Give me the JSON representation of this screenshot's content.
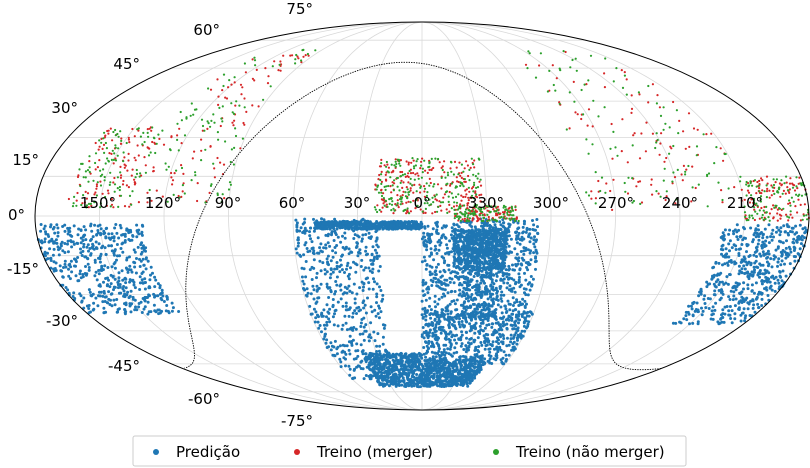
{
  "chart_data": {
    "type": "scatter",
    "projection": "mollweide",
    "title": "",
    "xlabel": "",
    "ylabel": "",
    "grid": true,
    "legend_position": "bottom",
    "lon_tick_labels": [
      "150°",
      "120°",
      "90°",
      "60°",
      "30°",
      "0°",
      "330°",
      "300°",
      "270°",
      "240°",
      "210°"
    ],
    "lat_tick_labels": [
      "-75°",
      "-60°",
      "-45°",
      "-30°",
      "-15°",
      "0°",
      "15°",
      "30°",
      "45°",
      "60°",
      "75°"
    ],
    "legend": [
      {
        "label": "Predição",
        "color": "#1f77b4"
      },
      {
        "label": "Treino (merger)",
        "color": "#d62728"
      },
      {
        "label": "Treino (não merger)",
        "color": "#2ca02c"
      }
    ],
    "series": [
      {
        "name": "Predição",
        "color": "#1f77b4",
        "regions": [
          {
            "ra": [
              305,
              340
            ],
            "dec": [
              -40,
              -1
            ]
          },
          {
            "ra": [
              320,
              360
            ],
            "dec": [
              -40,
              -2
            ]
          },
          {
            "ra": [
              20,
              60
            ],
            "dec": [
              -68,
              -1
            ]
          },
          {
            "ra": [
              0,
              50
            ],
            "dec": [
              -5,
              -2
            ]
          },
          {
            "ra": [
              300,
              360
            ],
            "dec": [
              -60,
              -37
            ]
          },
          {
            "ra": [
              0,
              40
            ],
            "dec": [
              -72,
              -55
            ]
          },
          {
            "ra": [
              315,
              360
            ],
            "dec": [
              -72,
              -58
            ]
          },
          {
            "ra": [
              320,
              345
            ],
            "dec": [
              -20,
              -5
            ]
          },
          {
            "ra": [
              130,
              180
            ],
            "dec": [
              -38,
              -3
            ]
          },
          {
            "ra": [
              180,
              220
            ],
            "dec": [
              -42,
              -3
            ]
          }
        ]
      },
      {
        "name": "Treino (merger)",
        "color": "#d62728",
        "regions": [
          {
            "ra": [
              0,
              22
            ],
            "dec": [
              1,
              22
            ]
          },
          {
            "ra": [
              332,
              360
            ],
            "dec": [
              1,
              22
            ]
          },
          {
            "ra": [
              90,
              135
            ],
            "dec": [
              5,
              70
            ]
          },
          {
            "ra": [
              210,
              285
            ],
            "dec": [
              2,
              70
            ]
          },
          {
            "ra": [
              135,
              165
            ],
            "dec": [
              3,
              35
            ]
          },
          {
            "ra": [
              180,
              210
            ],
            "dec": [
              -2,
              15
            ]
          },
          {
            "ra": [
              315,
              345
            ],
            "dec": [
              -2,
              4
            ]
          }
        ]
      },
      {
        "name": "Treino (não merger)",
        "color": "#2ca02c",
        "regions": [
          {
            "ra": [
              0,
              22
            ],
            "dec": [
              1,
              22
            ]
          },
          {
            "ra": [
              332,
              360
            ],
            "dec": [
              1,
              22
            ]
          },
          {
            "ra": [
              90,
              135
            ],
            "dec": [
              5,
              70
            ]
          },
          {
            "ra": [
              210,
              285
            ],
            "dec": [
              2,
              70
            ]
          },
          {
            "ra": [
              135,
              165
            ],
            "dec": [
              3,
              35
            ]
          },
          {
            "ra": [
              180,
              210
            ],
            "dec": [
              -2,
              15
            ]
          },
          {
            "ra": [
              315,
              345
            ],
            "dec": [
              -2,
              4
            ]
          }
        ]
      }
    ],
    "galactic_plane_boundary": {
      "b_deg": 0
    }
  }
}
